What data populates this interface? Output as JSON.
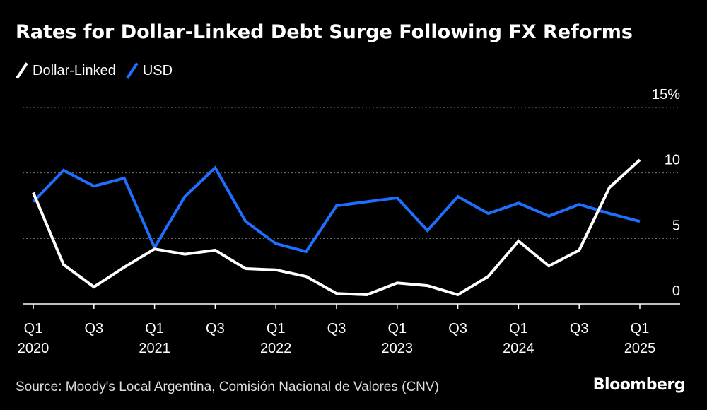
{
  "header": {
    "title": "Rates for Dollar-Linked Debt Surge Following FX Reforms"
  },
  "legend": [
    {
      "label": "Dollar-Linked",
      "color": "#ffffff"
    },
    {
      "label": "USD",
      "color": "#1f6fff"
    }
  ],
  "footer": {
    "source": "Source: Moody's Local Argentina, Comisión Nacional de Valores (CNV)",
    "brand": "Bloomberg"
  },
  "chart_data": {
    "type": "line",
    "title": "Rates for Dollar-Linked Debt Surge Following FX Reforms",
    "x": [
      "2020-Q1",
      "2020-Q2",
      "2020-Q3",
      "2020-Q4",
      "2021-Q1",
      "2021-Q2",
      "2021-Q3",
      "2021-Q4",
      "2022-Q1",
      "2022-Q2",
      "2022-Q3",
      "2022-Q4",
      "2023-Q1",
      "2023-Q2",
      "2023-Q3",
      "2023-Q4",
      "2024-Q1",
      "2024-Q2",
      "2024-Q3",
      "2024-Q4",
      "2025-Q1"
    ],
    "series": [
      {
        "name": "Dollar-Linked",
        "color": "#ffffff",
        "values": [
          8.5,
          3.0,
          1.3,
          2.8,
          4.2,
          3.8,
          4.1,
          2.7,
          2.6,
          2.1,
          0.8,
          0.7,
          1.6,
          1.4,
          0.7,
          2.1,
          4.8,
          2.9,
          4.1,
          8.9,
          11.0
        ]
      },
      {
        "name": "USD",
        "color": "#1f6fff",
        "values": [
          7.8,
          10.2,
          9.0,
          9.6,
          4.3,
          8.2,
          10.4,
          6.3,
          4.6,
          4.0,
          7.5,
          7.8,
          8.1,
          5.6,
          8.2,
          6.9,
          7.7,
          6.7,
          7.6,
          6.9,
          6.3
        ]
      }
    ],
    "xticks": [
      {
        "index": 0,
        "top": "Q1",
        "bottom": "2020"
      },
      {
        "index": 2,
        "top": "Q3",
        "bottom": ""
      },
      {
        "index": 4,
        "top": "Q1",
        "bottom": "2021"
      },
      {
        "index": 6,
        "top": "Q3",
        "bottom": ""
      },
      {
        "index": 8,
        "top": "Q1",
        "bottom": "2022"
      },
      {
        "index": 10,
        "top": "Q3",
        "bottom": ""
      },
      {
        "index": 12,
        "top": "Q1",
        "bottom": "2023"
      },
      {
        "index": 14,
        "top": "Q3",
        "bottom": ""
      },
      {
        "index": 16,
        "top": "Q1",
        "bottom": "2024"
      },
      {
        "index": 18,
        "top": "Q3",
        "bottom": ""
      },
      {
        "index": 20,
        "top": "Q1",
        "bottom": "2025"
      }
    ],
    "yticks": [
      {
        "value": 0,
        "label": "0"
      },
      {
        "value": 5,
        "label": "5"
      },
      {
        "value": 10,
        "label": "10"
      },
      {
        "value": 15,
        "label": "15%"
      }
    ],
    "ylim": [
      0,
      15
    ],
    "xlabel": "",
    "ylabel": "",
    "grid": true
  }
}
